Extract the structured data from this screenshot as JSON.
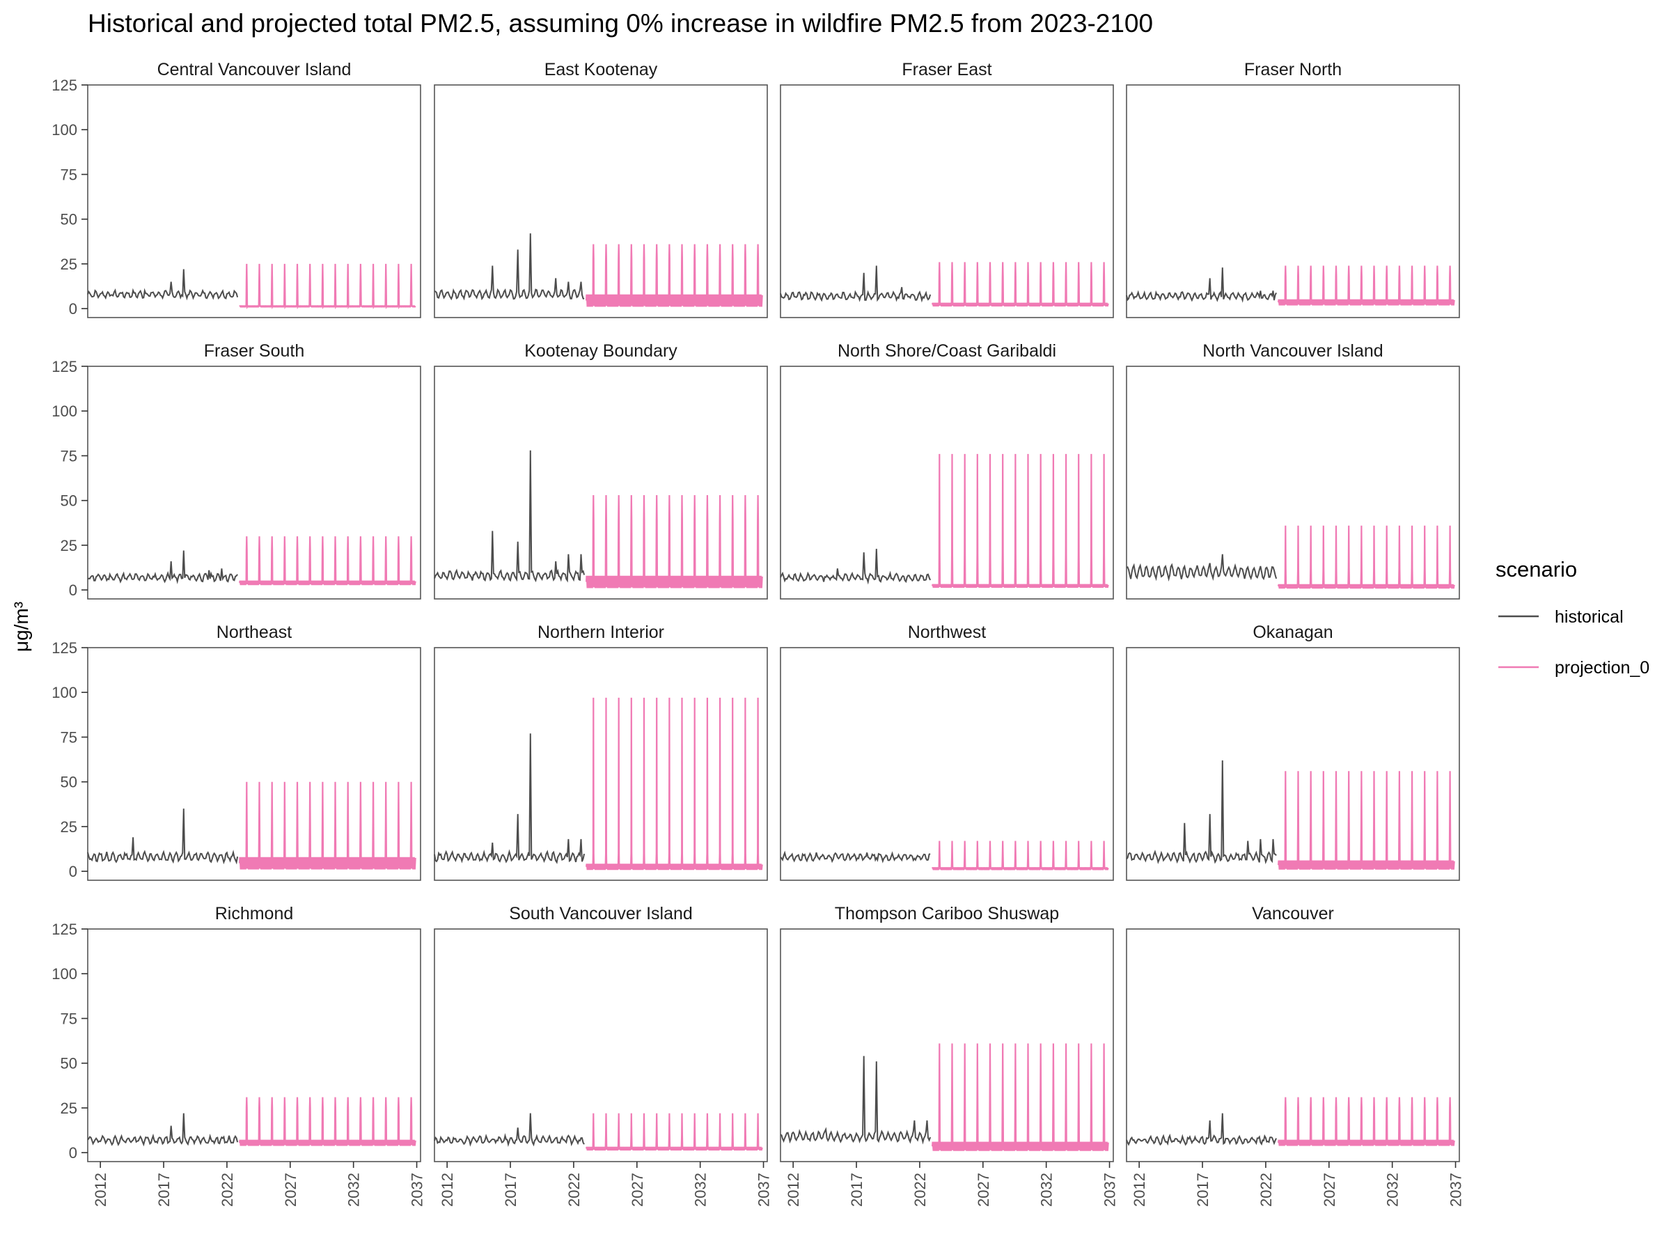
{
  "chart_data": {
    "type": "line",
    "title": "Historical and projected total PM2.5, assuming 0% increase in wildfire PM2.5 from 2023-2100",
    "ylabel": "μg/m³",
    "xlabel": "",
    "xlim": [
      2011,
      2037.3
    ],
    "ylim": [
      -5,
      125
    ],
    "x_ticks": [
      "2012",
      "2017",
      "2022",
      "2027",
      "2032",
      "2037"
    ],
    "y_ticks": [
      "0",
      "25",
      "50",
      "75",
      "100",
      "125"
    ],
    "grid": false,
    "legend": {
      "title": "scenario",
      "position": "right",
      "entries": [
        {
          "name": "historical",
          "color": "#4d4d4d"
        },
        {
          "name": "projection_0",
          "color": "#f07ab4"
        }
      ]
    },
    "historical_range": [
      2011,
      2022.9
    ],
    "projection_range": [
      2023,
      2036.9
    ],
    "panels": [
      {
        "name": "Central Vancouver Island",
        "hist_base": 8,
        "hist_amp": 1.5,
        "hist_spikes": [
          [
            2015.5,
            10
          ],
          [
            2017.6,
            15
          ],
          [
            2018.6,
            22
          ]
        ],
        "proj_peak": 25,
        "proj_secondary": 15,
        "proj_base": 1.5,
        "proj_floor": 1
      },
      {
        "name": "East Kootenay",
        "hist_base": 8,
        "hist_amp": 2,
        "hist_spikes": [
          [
            2015.6,
            24
          ],
          [
            2017.6,
            33
          ],
          [
            2018.6,
            42
          ],
          [
            2020.6,
            17
          ],
          [
            2021.6,
            15
          ],
          [
            2022.6,
            15
          ]
        ],
        "proj_peak": 36,
        "proj_secondary": 28,
        "proj_base": 8,
        "proj_floor": 1
      },
      {
        "name": "Fraser East",
        "hist_base": 7,
        "hist_amp": 1.5,
        "hist_spikes": [
          [
            2017.6,
            20
          ],
          [
            2018.6,
            24
          ],
          [
            2020.6,
            12
          ]
        ],
        "proj_peak": 26,
        "proj_secondary": 18,
        "proj_base": 3,
        "proj_floor": 1.5
      },
      {
        "name": "Fraser North",
        "hist_base": 7,
        "hist_amp": 1.5,
        "hist_spikes": [
          [
            2017.6,
            17
          ],
          [
            2018.6,
            23
          ],
          [
            2021.6,
            10
          ],
          [
            2022.6,
            10
          ]
        ],
        "proj_peak": 24,
        "proj_secondary": 18,
        "proj_base": 5,
        "proj_floor": 2
      },
      {
        "name": "Fraser South",
        "hist_base": 7,
        "hist_amp": 1.5,
        "hist_spikes": [
          [
            2017.6,
            16
          ],
          [
            2018.6,
            22
          ],
          [
            2020.6,
            11
          ],
          [
            2021.6,
            12
          ]
        ],
        "proj_peak": 30,
        "proj_secondary": 22,
        "proj_base": 5,
        "proj_floor": 3
      },
      {
        "name": "Kootenay Boundary",
        "hist_base": 8,
        "hist_amp": 2,
        "hist_spikes": [
          [
            2015.6,
            33
          ],
          [
            2017.6,
            27
          ],
          [
            2018.6,
            78
          ],
          [
            2020.6,
            16
          ],
          [
            2021.6,
            20
          ],
          [
            2022.6,
            20
          ]
        ],
        "proj_peak": 53,
        "proj_secondary": 39,
        "proj_base": 8,
        "proj_floor": 1
      },
      {
        "name": "North Shore/Coast Garibaldi",
        "hist_base": 7,
        "hist_amp": 1.5,
        "hist_spikes": [
          [
            2015.5,
            12
          ],
          [
            2017.6,
            21
          ],
          [
            2018.6,
            23
          ]
        ],
        "proj_peak": 76,
        "proj_secondary": 20,
        "proj_base": 3,
        "proj_floor": 1.5
      },
      {
        "name": "North Vancouver Island",
        "hist_base": 10,
        "hist_amp": 3,
        "hist_spikes": [
          [
            2014.6,
            14
          ],
          [
            2017.6,
            15
          ],
          [
            2018.6,
            20
          ]
        ],
        "proj_peak": 36,
        "proj_secondary": 12,
        "proj_base": 3,
        "proj_floor": 1
      },
      {
        "name": "Northeast",
        "hist_base": 8,
        "hist_amp": 2,
        "hist_spikes": [
          [
            2014.6,
            19
          ],
          [
            2018.6,
            35
          ],
          [
            2019.6,
            10
          ]
        ],
        "proj_peak": 50,
        "proj_secondary": 27,
        "proj_base": 8,
        "proj_floor": 1
      },
      {
        "name": "Northern Interior",
        "hist_base": 8,
        "hist_amp": 2,
        "hist_spikes": [
          [
            2015.6,
            16
          ],
          [
            2017.6,
            32
          ],
          [
            2018.6,
            77
          ],
          [
            2021.6,
            18
          ],
          [
            2022.6,
            18
          ]
        ],
        "proj_peak": 97,
        "proj_secondary": 10,
        "proj_base": 4,
        "proj_floor": 1
      },
      {
        "name": "Northwest",
        "hist_base": 8,
        "hist_amp": 1.5,
        "hist_spikes": [],
        "proj_peak": 17,
        "proj_secondary": 8,
        "proj_base": 2,
        "proj_floor": 1
      },
      {
        "name": "Okanagan",
        "hist_base": 8,
        "hist_amp": 2,
        "hist_spikes": [
          [
            2015.6,
            27
          ],
          [
            2017.6,
            32
          ],
          [
            2018.6,
            62
          ],
          [
            2020.6,
            17
          ],
          [
            2021.6,
            18
          ],
          [
            2022.6,
            18
          ]
        ],
        "proj_peak": 56,
        "proj_secondary": 28,
        "proj_base": 6,
        "proj_floor": 1
      },
      {
        "name": "Richmond",
        "hist_base": 7,
        "hist_amp": 1.5,
        "hist_spikes": [
          [
            2017.6,
            15
          ],
          [
            2018.6,
            22
          ]
        ],
        "proj_peak": 31,
        "proj_secondary": 25,
        "proj_base": 7,
        "proj_floor": 4
      },
      {
        "name": "South Vancouver Island",
        "hist_base": 7,
        "hist_amp": 1.5,
        "hist_spikes": [
          [
            2017.6,
            14
          ],
          [
            2018.6,
            22
          ]
        ],
        "proj_peak": 22,
        "proj_secondary": 10,
        "proj_base": 3,
        "proj_floor": 1.5
      },
      {
        "name": "Thompson Cariboo Shuswap",
        "hist_base": 9,
        "hist_amp": 2,
        "hist_spikes": [
          [
            2014.6,
            13
          ],
          [
            2017.6,
            54
          ],
          [
            2018.6,
            51
          ],
          [
            2021.6,
            18
          ],
          [
            2022.6,
            18
          ]
        ],
        "proj_peak": 61,
        "proj_secondary": 30,
        "proj_base": 6,
        "proj_floor": 1
      },
      {
        "name": "Vancouver",
        "hist_base": 7,
        "hist_amp": 1.5,
        "hist_spikes": [
          [
            2017.6,
            18
          ],
          [
            2018.6,
            22
          ]
        ],
        "proj_peak": 31,
        "proj_secondary": 25,
        "proj_base": 7,
        "proj_floor": 4
      }
    ]
  }
}
